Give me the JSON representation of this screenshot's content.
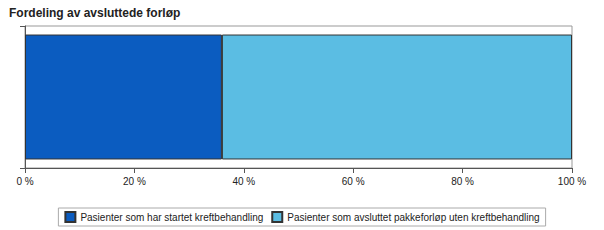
{
  "chart_data": {
    "type": "bar",
    "title": "Fordeling av avsluttede forløp",
    "orientation": "horizontal",
    "stacked": true,
    "categories": [
      null
    ],
    "series": [
      {
        "name": "Pasienter som har startet kreftbehandling",
        "color": "#0b5cc0",
        "values": [
          36
        ]
      },
      {
        "name": "Pasienter som avsluttet pakkeforløp uten kreftbehandling",
        "color": "#5bbde3",
        "values": [
          64
        ]
      }
    ],
    "xlim": [
      0,
      100
    ],
    "xticks": [
      {
        "value": 0,
        "label": "0 %"
      },
      {
        "value": 20,
        "label": "20 %"
      },
      {
        "value": 40,
        "label": "40 %"
      },
      {
        "value": 60,
        "label": "60 %"
      },
      {
        "value": 80,
        "label": "80 %"
      },
      {
        "value": 100,
        "label": "100 %"
      }
    ],
    "legend": "bottom",
    "grid": false
  }
}
